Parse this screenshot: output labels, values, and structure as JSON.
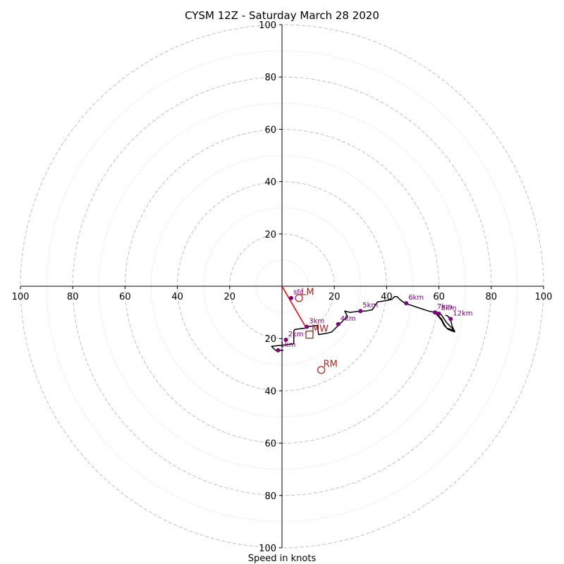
{
  "chart_data": {
    "type": "hodograph",
    "title": "CYSM 12Z - Saturday March 28 2020",
    "xlabel": "Speed in knots",
    "xlim": [
      -100,
      100
    ],
    "ylim": [
      -100,
      100
    ],
    "major_rings": [
      20,
      40,
      60,
      80,
      100
    ],
    "minor_rings": [
      10,
      30,
      50,
      70,
      90
    ],
    "x_ticks": [
      {
        "value": -100,
        "label": "100"
      },
      {
        "value": -80,
        "label": "80"
      },
      {
        "value": -60,
        "label": "60"
      },
      {
        "value": -40,
        "label": "40"
      },
      {
        "value": -20,
        "label": "20"
      },
      {
        "value": 20,
        "label": "20"
      },
      {
        "value": 40,
        "label": "40"
      },
      {
        "value": 60,
        "label": "60"
      },
      {
        "value": 80,
        "label": "80"
      },
      {
        "value": 100,
        "label": "100"
      }
    ],
    "y_ticks": [
      {
        "value": 100,
        "label": "100"
      },
      {
        "value": 80,
        "label": "80"
      },
      {
        "value": 60,
        "label": "60"
      },
      {
        "value": 40,
        "label": "40"
      },
      {
        "value": 20,
        "label": "20"
      },
      {
        "value": -20,
        "label": "20"
      },
      {
        "value": -40,
        "label": "40"
      },
      {
        "value": -60,
        "label": "60"
      },
      {
        "value": -80,
        "label": "80"
      },
      {
        "value": -100,
        "label": "100"
      }
    ],
    "hodograph_trace": [
      [
        0.5,
        -24.5
      ],
      [
        -2.5,
        -24.5
      ],
      [
        -4,
        -23
      ],
      [
        0.5,
        -22.5
      ],
      [
        4.5,
        -22
      ],
      [
        4.5,
        -17
      ],
      [
        5,
        -16.5
      ],
      [
        9,
        -16
      ],
      [
        9.5,
        -15.5
      ],
      [
        13.5,
        -15
      ],
      [
        14,
        -18.5
      ],
      [
        17,
        -18
      ],
      [
        19,
        -17.5
      ],
      [
        21.5,
        -15
      ],
      [
        25,
        -11.5
      ],
      [
        24,
        -9.5
      ],
      [
        26,
        -10
      ],
      [
        30,
        -9.5
      ],
      [
        32,
        -9.5
      ],
      [
        34.5,
        -9
      ],
      [
        36.5,
        -6
      ],
      [
        40,
        -5.5
      ],
      [
        42,
        -5
      ],
      [
        43,
        -4
      ],
      [
        44,
        -4
      ],
      [
        45,
        -5
      ],
      [
        47,
        -6.5
      ],
      [
        50,
        -7.5
      ],
      [
        53,
        -8.5
      ],
      [
        56,
        -9.5
      ],
      [
        58.5,
        -10
      ],
      [
        61,
        -12.5
      ],
      [
        62,
        -14.5
      ],
      [
        63,
        -16
      ],
      [
        66,
        -17
      ],
      [
        63,
        -14
      ],
      [
        62,
        -12.5
      ],
      [
        61,
        -11
      ],
      [
        59.5,
        -10
      ],
      [
        58.5,
        -10
      ],
      [
        61,
        -13
      ],
      [
        62,
        -15
      ],
      [
        63.5,
        -16.5
      ],
      [
        66,
        -17.5
      ],
      [
        65,
        -15
      ],
      [
        64.5,
        -13
      ],
      [
        63.5,
        -11.5
      ],
      [
        62.5,
        -11
      ]
    ],
    "height_points": [
      {
        "label": "1km",
        "u": -1.5,
        "v": -24.5
      },
      {
        "label": "2km",
        "u": 1.5,
        "v": -20.5
      },
      {
        "label": "3km",
        "u": 9.5,
        "v": -15.5
      },
      {
        "label": "4km",
        "u": 21.5,
        "v": -14.5
      },
      {
        "label": "5km",
        "u": 30,
        "v": -9.5
      },
      {
        "label": "6km",
        "u": 47.5,
        "v": -6.5
      },
      {
        "label": "7km",
        "u": 58.5,
        "v": -10
      },
      {
        "label": "8km",
        "u": 60,
        "v": -10.5
      },
      {
        "label": "12km",
        "u": 64.5,
        "v": -12.5
      },
      {
        "label": "sfc",
        "u": 3.5,
        "v": -4.5
      }
    ],
    "storm_motions": [
      {
        "label": "LM",
        "u": 6.5,
        "v": -4.5,
        "marker": "circle"
      },
      {
        "label": "MW",
        "u": 10.5,
        "v": -18.5,
        "marker": "square"
      },
      {
        "label": "RM",
        "u": 15,
        "v": -32,
        "marker": "circle"
      }
    ],
    "shear_vector": {
      "from": [
        0,
        0
      ],
      "to": [
        9,
        -15.5
      ]
    },
    "grid": true
  },
  "colors": {
    "trace": "#000000",
    "height_points": "#800080",
    "storm_motion": "#b22222",
    "shear_vector": "#ff0000",
    "rings": "#bfbfbf"
  }
}
